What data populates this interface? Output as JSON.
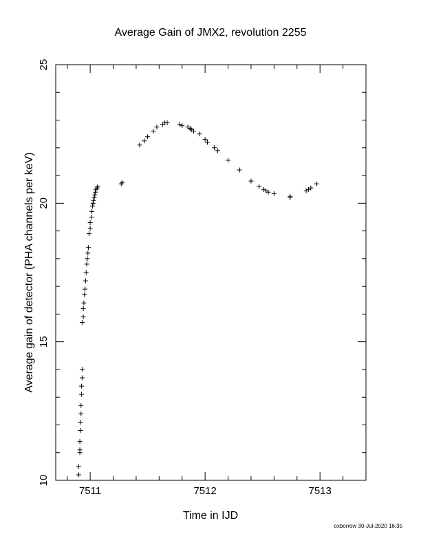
{
  "chart_data": {
    "type": "scatter",
    "title": "Average Gain of JMX2, revolution 2255",
    "xlabel": "Time in IJD",
    "ylabel": "Average gain of detector (PHA channels per keV)",
    "xlim": [
      7510.7,
      7513.4
    ],
    "ylim": [
      10,
      25
    ],
    "xticks": [
      7511,
      7512,
      7513
    ],
    "yticks": [
      10,
      15,
      20,
      25
    ],
    "marker": "+",
    "grid": false,
    "footer": "oxborrow 30-Jul-2020 16:35",
    "points": [
      [
        7510.9,
        10.2
      ],
      [
        7510.9,
        10.5
      ],
      [
        7510.91,
        11.0
      ],
      [
        7510.91,
        11.1
      ],
      [
        7510.91,
        11.4
      ],
      [
        7510.915,
        11.8
      ],
      [
        7510.915,
        12.1
      ],
      [
        7510.92,
        12.4
      ],
      [
        7510.92,
        12.7
      ],
      [
        7510.925,
        13.1
      ],
      [
        7510.925,
        13.4
      ],
      [
        7510.93,
        13.7
      ],
      [
        7510.93,
        14.0
      ],
      [
        7510.93,
        15.7
      ],
      [
        7510.94,
        15.9
      ],
      [
        7510.94,
        16.2
      ],
      [
        7510.945,
        16.4
      ],
      [
        7510.95,
        16.7
      ],
      [
        7510.955,
        16.9
      ],
      [
        7510.96,
        17.2
      ],
      [
        7510.965,
        17.5
      ],
      [
        7510.97,
        17.8
      ],
      [
        7510.975,
        18.0
      ],
      [
        7510.98,
        18.2
      ],
      [
        7510.985,
        18.4
      ],
      [
        7510.99,
        18.9
      ],
      [
        7511.0,
        19.1
      ],
      [
        7511.0,
        19.3
      ],
      [
        7511.01,
        19.5
      ],
      [
        7511.015,
        19.7
      ],
      [
        7511.02,
        19.9
      ],
      [
        7511.025,
        20.0
      ],
      [
        7511.03,
        20.1
      ],
      [
        7511.035,
        20.2
      ],
      [
        7511.04,
        20.3
      ],
      [
        7511.045,
        20.4
      ],
      [
        7511.05,
        20.5
      ],
      [
        7511.06,
        20.55
      ],
      [
        7511.065,
        20.6
      ],
      [
        7511.27,
        20.7
      ],
      [
        7511.28,
        20.75
      ],
      [
        7511.43,
        22.1
      ],
      [
        7511.47,
        22.25
      ],
      [
        7511.5,
        22.4
      ],
      [
        7511.55,
        22.6
      ],
      [
        7511.58,
        22.75
      ],
      [
        7511.63,
        22.85
      ],
      [
        7511.65,
        22.9
      ],
      [
        7511.67,
        22.9
      ],
      [
        7511.78,
        22.85
      ],
      [
        7511.8,
        22.8
      ],
      [
        7511.85,
        22.75
      ],
      [
        7511.87,
        22.7
      ],
      [
        7511.88,
        22.65
      ],
      [
        7511.9,
        22.6
      ],
      [
        7511.95,
        22.5
      ],
      [
        7512.0,
        22.3
      ],
      [
        7512.02,
        22.2
      ],
      [
        7512.08,
        22.0
      ],
      [
        7512.11,
        21.9
      ],
      [
        7512.2,
        21.55
      ],
      [
        7512.3,
        21.2
      ],
      [
        7512.4,
        20.8
      ],
      [
        7512.47,
        20.6
      ],
      [
        7512.51,
        20.5
      ],
      [
        7512.53,
        20.45
      ],
      [
        7512.55,
        20.4
      ],
      [
        7512.6,
        20.35
      ],
      [
        7512.74,
        20.2
      ],
      [
        7512.74,
        20.25
      ],
      [
        7512.88,
        20.45
      ],
      [
        7512.9,
        20.5
      ],
      [
        7512.92,
        20.55
      ],
      [
        7512.97,
        20.7
      ]
    ]
  }
}
